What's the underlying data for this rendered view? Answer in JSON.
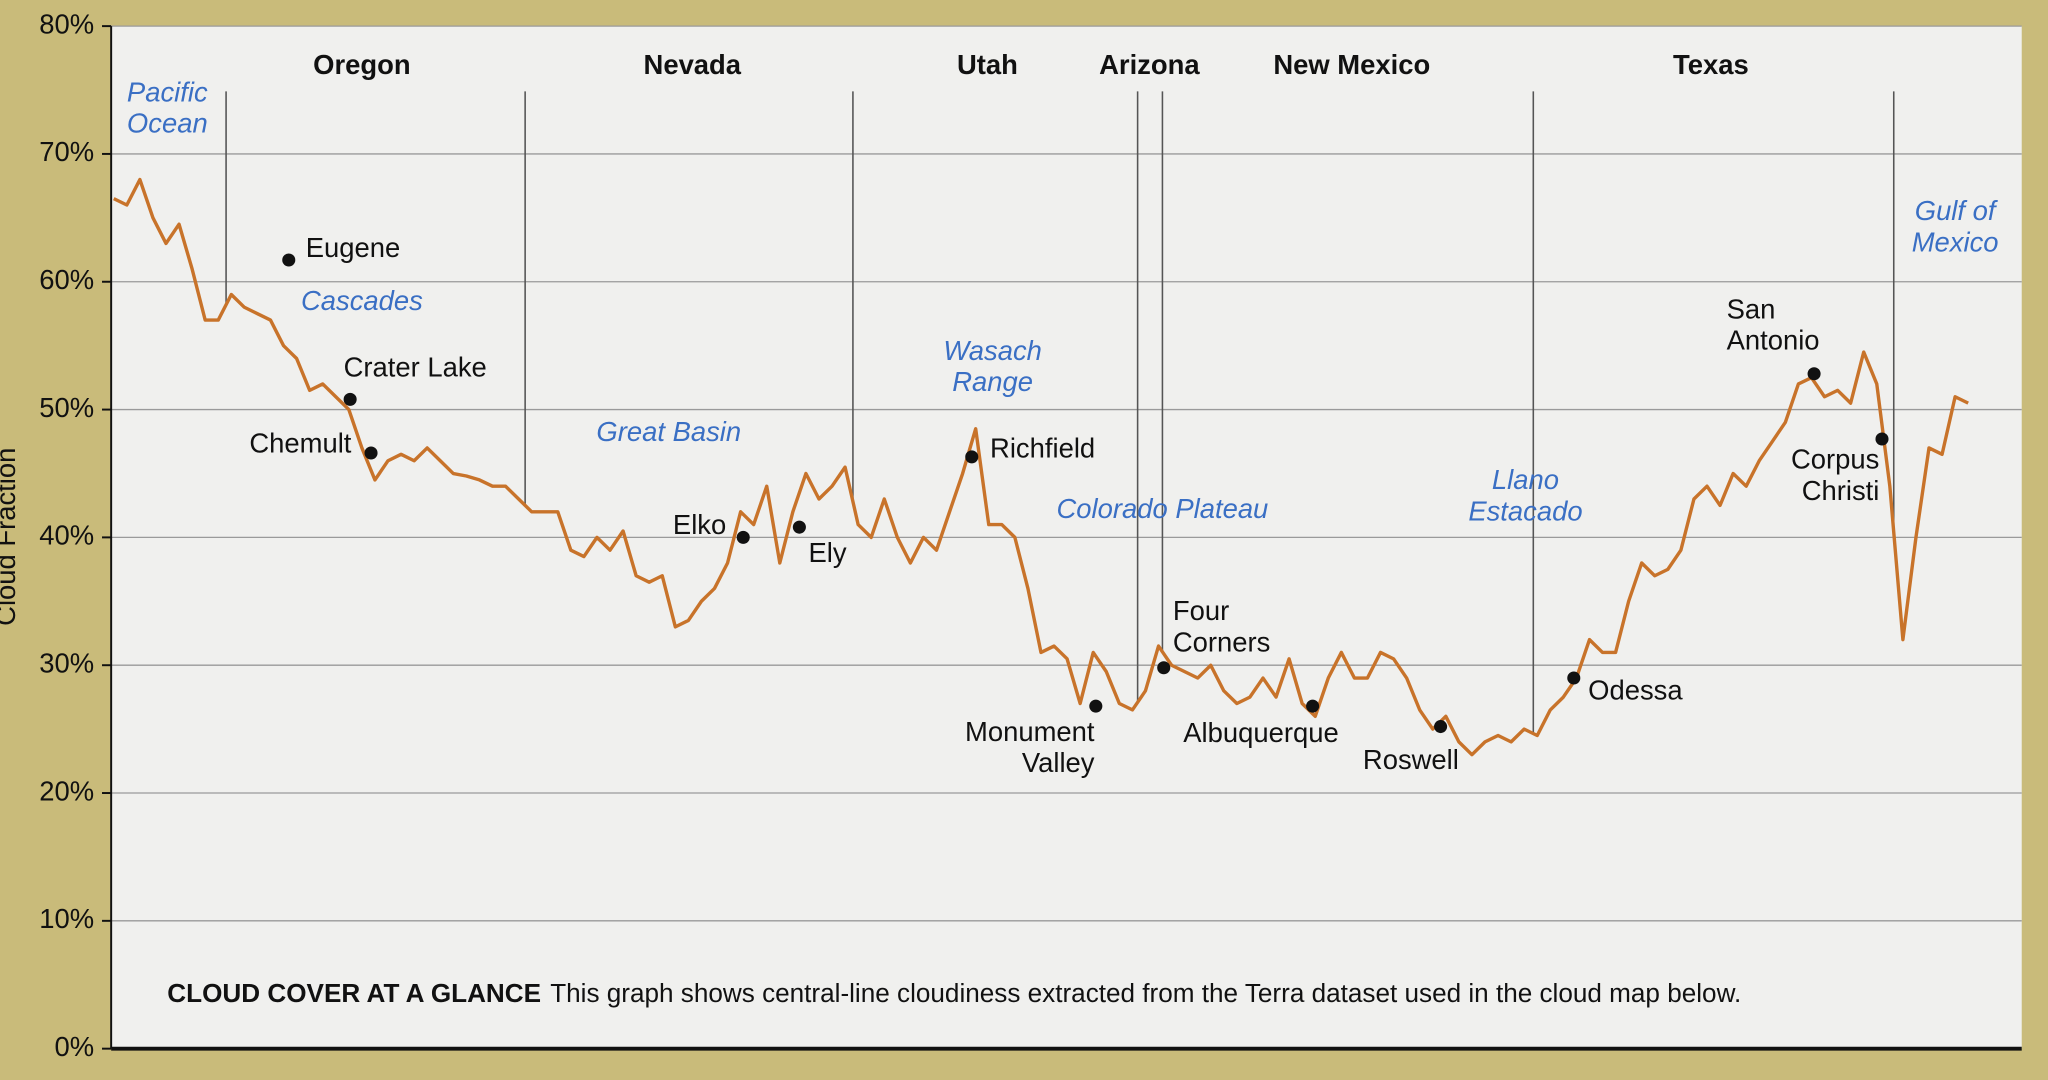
{
  "chart_data": {
    "type": "line",
    "ylabel": "Cloud Fraction",
    "caption_title": "CLOUD COVER AT A GLANCE",
    "caption": "This graph shows central-line cloudiness extracted from the Terra dataset used in the cloud map below.",
    "color": "#c8732a",
    "grid": true,
    "ylim": [
      0,
      80
    ],
    "yticks": [
      {
        "value": 0,
        "label": "0%"
      },
      {
        "value": 10,
        "label": "10%"
      },
      {
        "value": 20,
        "label": "20%"
      },
      {
        "value": 30,
        "label": "30%"
      },
      {
        "value": 40,
        "label": "40%"
      },
      {
        "value": 50,
        "label": "50%"
      },
      {
        "value": 60,
        "label": "60%"
      },
      {
        "value": 70,
        "label": "70%"
      },
      {
        "value": 80,
        "label": "80%"
      }
    ],
    "values": [
      66.5,
      66,
      68,
      65,
      63,
      64.5,
      61,
      57,
      57,
      59,
      58,
      57.5,
      57,
      55,
      54,
      51.5,
      52,
      51,
      50,
      47,
      44.5,
      46,
      46.5,
      46,
      47,
      46,
      45,
      44.8,
      44.5,
      44,
      44,
      43,
      42,
      42,
      42,
      39,
      38.5,
      40,
      39,
      40.5,
      37,
      36.5,
      37,
      33,
      33.5,
      35,
      36,
      38,
      42,
      41,
      44,
      38,
      42,
      45,
      43,
      44,
      45.5,
      41,
      40,
      43,
      40,
      38,
      40,
      39,
      42,
      45,
      48.5,
      41,
      41,
      40,
      36,
      31,
      31.5,
      30.5,
      27,
      31,
      29.5,
      27,
      26.5,
      28,
      31.5,
      30,
      29.5,
      29,
      30,
      28,
      27,
      27.5,
      29,
      27.5,
      30.5,
      27,
      26,
      29,
      31,
      29,
      29,
      31,
      30.5,
      29,
      26.5,
      25,
      26,
      24,
      23,
      24,
      24.5,
      24,
      25,
      24.5,
      26.5,
      27.5,
      29,
      32,
      31,
      31,
      35,
      38,
      37,
      37.5,
      39,
      43,
      44,
      42.5,
      45,
      44,
      46,
      47.5,
      49,
      52,
      52.5,
      51,
      51.5,
      50.5,
      54.5,
      52,
      44,
      32,
      40,
      47,
      46.5,
      51,
      50.5
    ],
    "states": [
      "Oregon",
      "Nevada",
      "Utah",
      "Arizona",
      "New Mexico",
      "Texas"
    ],
    "dividers": [
      8.6,
      31.5,
      56.6,
      78.4,
      80.3,
      108.7,
      136.3
    ],
    "regions": [
      [
        "Pacific",
        "Ocean"
      ],
      [
        "Cascades"
      ],
      [
        "Great Basin"
      ],
      [
        "Wasach",
        "Range"
      ],
      [
        "Colorado Plateau"
      ],
      [
        "Llano",
        "Estacado"
      ],
      [
        "Gulf of",
        "Mexico"
      ]
    ],
    "cities": [
      {
        "label": [
          "Eugene"
        ],
        "x": 13.4,
        "y": 61.7
      },
      {
        "label": [
          "Crater Lake"
        ],
        "x": 18.1,
        "y": 50.8
      },
      {
        "label": [
          "Chemult"
        ],
        "x": 19.7,
        "y": 46.6
      },
      {
        "label": [
          "Elko"
        ],
        "x": 48.2,
        "y": 40
      },
      {
        "label": [
          "Ely"
        ],
        "x": 52.5,
        "y": 40.8
      },
      {
        "label": [
          "Richfield"
        ],
        "x": 65.7,
        "y": 46.3
      },
      {
        "label": [
          "Monument",
          "Valley"
        ],
        "x": 75.2,
        "y": 26.8
      },
      {
        "label": [
          "Four",
          "Corners"
        ],
        "x": 80.4,
        "y": 29.8
      },
      {
        "label": [
          "Albuquerque"
        ],
        "x": 91.8,
        "y": 26.8
      },
      {
        "label": [
          "Roswell"
        ],
        "x": 101.6,
        "y": 25.2
      },
      {
        "label": [
          "Odessa"
        ],
        "x": 111.8,
        "y": 29
      },
      {
        "label": [
          "San",
          "Antonio"
        ],
        "x": 130.2,
        "y": 52.8
      },
      {
        "label": [
          "Corpus",
          "Christi"
        ],
        "x": 135.4,
        "y": 47.7
      }
    ]
  }
}
